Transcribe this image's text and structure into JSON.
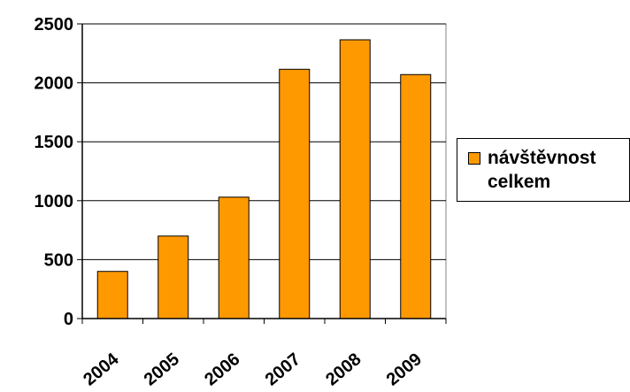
{
  "chart_data": {
    "type": "bar",
    "categories": [
      "2004",
      "2005",
      "2006",
      "2007",
      "2008",
      "2009"
    ],
    "series": [
      {
        "name": "návštěvnost\ncelkem",
        "values": [
          400,
          700,
          1030,
          2115,
          2365,
          2070
        ],
        "color": "#FF9900"
      }
    ],
    "yticks": [
      "0",
      "500",
      "1000",
      "1500",
      "2000",
      "2500"
    ],
    "ylim": [
      0,
      2500
    ],
    "grid": true,
    "legend_position": "right",
    "title": "",
    "xlabel": "",
    "ylabel": ""
  }
}
